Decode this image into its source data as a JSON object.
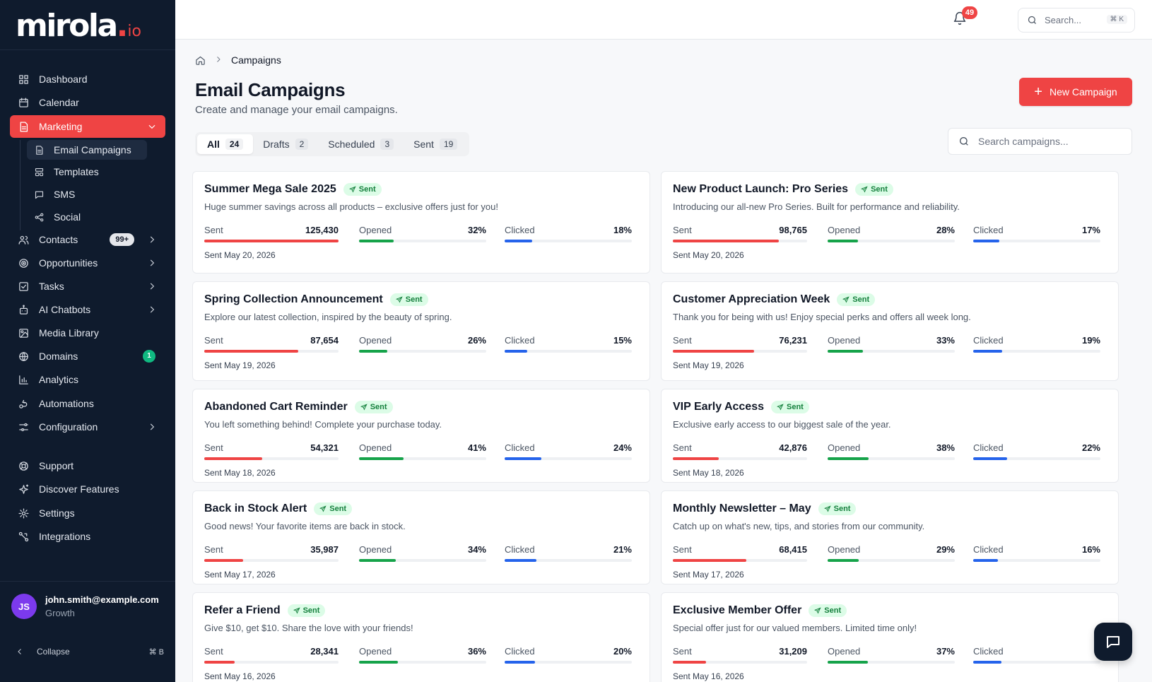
{
  "brand": {
    "name": "mirola",
    "dot": ".",
    "tld": "io"
  },
  "nav": {
    "items": [
      {
        "label": "Dashboard",
        "icon": "dashboard-icon"
      },
      {
        "label": "Calendar",
        "icon": "calendar-icon"
      },
      {
        "label": "Marketing",
        "icon": "marketing-icon",
        "expanded": true,
        "active": true
      },
      {
        "label": "Contacts",
        "icon": "contacts-icon",
        "badge": "99+"
      },
      {
        "label": "Opportunities",
        "icon": "opportunities-icon"
      },
      {
        "label": "Tasks",
        "icon": "tasks-icon"
      },
      {
        "label": "AI Chatbots",
        "icon": "bot-icon"
      },
      {
        "label": "Media Library",
        "icon": "image-icon"
      },
      {
        "label": "Domains",
        "icon": "globe-icon",
        "badge": "1"
      },
      {
        "label": "Analytics",
        "icon": "analytics-icon"
      },
      {
        "label": "Automations",
        "icon": "automation-icon"
      },
      {
        "label": "Configuration",
        "icon": "config-icon"
      }
    ],
    "marketing_sub": [
      {
        "label": "Email Campaigns",
        "icon": "document-icon",
        "active": true
      },
      {
        "label": "Templates",
        "icon": "template-icon"
      },
      {
        "label": "SMS",
        "icon": "message-icon"
      },
      {
        "label": "Social",
        "icon": "share-icon"
      }
    ],
    "bottom": [
      {
        "label": "Support",
        "icon": "support-icon"
      },
      {
        "label": "Discover Features",
        "icon": "sparkle-icon"
      },
      {
        "label": "Settings",
        "icon": "gear-icon"
      },
      {
        "label": "Integrations",
        "icon": "integration-icon"
      }
    ]
  },
  "user": {
    "initials": "JS",
    "email": "john.smith@example.com",
    "plan": "Growth"
  },
  "collapse": {
    "label": "Collapse",
    "shortcut": "⌘ B"
  },
  "topbar": {
    "notifications": "49",
    "search_placeholder": "Search...",
    "search_shortcut": "⌘ K"
  },
  "breadcrumb": {
    "current": "Campaigns"
  },
  "page": {
    "title": "Email Campaigns",
    "subtitle": "Create and manage your email campaigns.",
    "new_button": "New Campaign"
  },
  "tabs": [
    {
      "label": "All",
      "count": "24",
      "active": true
    },
    {
      "label": "Drafts",
      "count": "2"
    },
    {
      "label": "Scheduled",
      "count": "3"
    },
    {
      "label": "Sent",
      "count": "19"
    }
  ],
  "campaign_search_placeholder": "Search campaigns...",
  "metric_labels": {
    "sent": "Sent",
    "opened": "Opened",
    "clicked": "Clicked"
  },
  "colors": {
    "accent": "#ef4444",
    "sidebar": "#0f1b2d",
    "opened": "#16a34a",
    "clicked": "#2563eb",
    "badge_green": "#10b981"
  },
  "campaigns": [
    {
      "title": "Summer Mega Sale 2025",
      "status": "Sent",
      "desc": "Huge summer savings across all products – exclusive offers just for you!",
      "sent": "125,430",
      "opened": "32%",
      "clicked": "18%",
      "date": "Sent May 20, 2026"
    },
    {
      "title": "New Product Launch: Pro Series",
      "status": "Sent",
      "desc": "Introducing our all-new Pro Series. Built for performance and reliability.",
      "sent": "98,765",
      "opened": "28%",
      "clicked": "17%",
      "date": "Sent May 20, 2026"
    },
    {
      "title": "Spring Collection Announcement",
      "status": "Sent",
      "desc": "Explore our latest collection, inspired by the beauty of spring.",
      "sent": "87,654",
      "opened": "26%",
      "clicked": "15%",
      "date": "Sent May 19, 2026"
    },
    {
      "title": "Customer Appreciation Week",
      "status": "Sent",
      "desc": "Thank you for being with us! Enjoy special perks and offers all week long.",
      "sent": "76,231",
      "opened": "33%",
      "clicked": "19%",
      "date": "Sent May 19, 2026"
    },
    {
      "title": "Abandoned Cart Reminder",
      "status": "Sent",
      "desc": "You left something behind! Complete your purchase today.",
      "sent": "54,321",
      "opened": "41%",
      "clicked": "24%",
      "date": "Sent May 18, 2026"
    },
    {
      "title": "VIP Early Access",
      "status": "Sent",
      "desc": "Exclusive early access to our biggest sale of the year.",
      "sent": "42,876",
      "opened": "38%",
      "clicked": "22%",
      "date": "Sent May 18, 2026"
    },
    {
      "title": "Back in Stock Alert",
      "status": "Sent",
      "desc": "Good news! Your favorite items are back in stock.",
      "sent": "35,987",
      "opened": "34%",
      "clicked": "21%",
      "date": "Sent May 17, 2026"
    },
    {
      "title": "Monthly Newsletter – May",
      "status": "Sent",
      "desc": "Catch up on what's new, tips, and stories from our community.",
      "sent": "68,415",
      "opened": "29%",
      "clicked": "16%",
      "date": "Sent May 17, 2026"
    },
    {
      "title": "Refer a Friend",
      "status": "Sent",
      "desc": "Give $10, get $10. Share the love with your friends!",
      "sent": "28,341",
      "opened": "36%",
      "clicked": "20%",
      "date": "Sent May 16, 2026"
    },
    {
      "title": "Exclusive Member Offer",
      "status": "Sent",
      "desc": "Special offer just for our valued members. Limited time only!",
      "sent": "31,209",
      "opened": "37%",
      "clicked": "",
      "date": "Sent May 16, 2026"
    }
  ]
}
